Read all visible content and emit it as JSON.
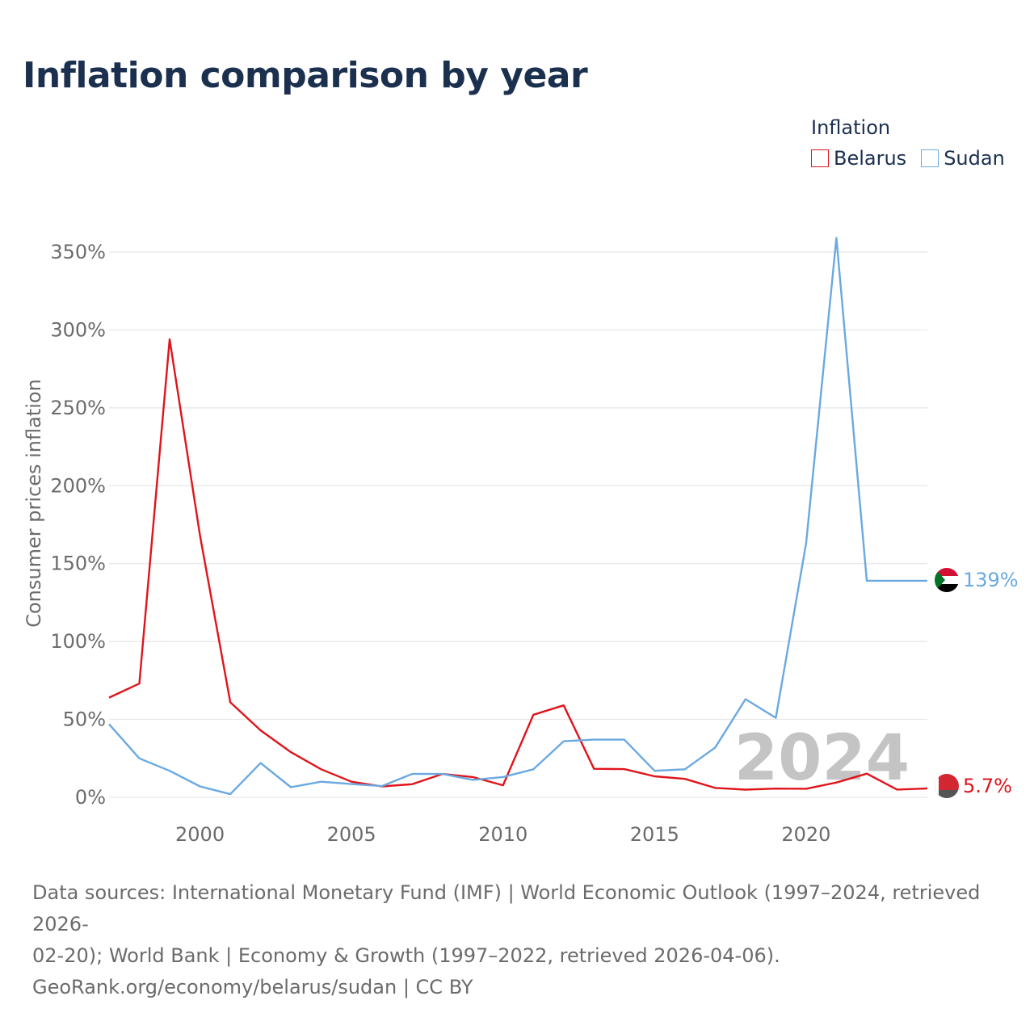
{
  "title": "Inflation comparison by year",
  "legend": {
    "title": "Inflation",
    "items": [
      {
        "label": "Belarus",
        "color": "#e0141b"
      },
      {
        "label": "Sudan",
        "color": "#6aa9e0"
      }
    ]
  },
  "chart_data": {
    "type": "line",
    "title": "Inflation comparison by year",
    "xlabel": "",
    "ylabel": "Consumer prices inflation",
    "xlim": [
      1997,
      2024
    ],
    "ylim": [
      0,
      350
    ],
    "x_ticks": [
      2000,
      2005,
      2010,
      2015,
      2020
    ],
    "y_ticks": [
      0,
      50,
      100,
      150,
      200,
      250,
      300,
      350
    ],
    "y_tick_labels": [
      "0%",
      "50%",
      "100%",
      "150%",
      "200%",
      "250%",
      "300%",
      "350%"
    ],
    "grid": true,
    "year_watermark": "2024",
    "x": [
      1997,
      1998,
      1999,
      2000,
      2001,
      2002,
      2003,
      2004,
      2005,
      2006,
      2007,
      2008,
      2009,
      2010,
      2011,
      2012,
      2013,
      2014,
      2015,
      2016,
      2017,
      2018,
      2019,
      2020,
      2021,
      2022,
      2023,
      2024
    ],
    "series": [
      {
        "name": "Belarus",
        "color": "#e0141b",
        "values": [
          64,
          73,
          294,
          168,
          61,
          43,
          29,
          18,
          10,
          7,
          8.4,
          15,
          13,
          7.7,
          53,
          59,
          18.3,
          18.1,
          13.5,
          11.8,
          6,
          4.9,
          5.6,
          5.5,
          9.5,
          15.2,
          5,
          5.7
        ],
        "end_label": "5.7%"
      },
      {
        "name": "Sudan",
        "color": "#6aa9e0",
        "values": [
          47,
          25,
          17,
          7,
          2,
          22,
          6.5,
          10,
          8.5,
          7.2,
          15,
          15,
          11.2,
          13,
          18,
          36,
          37,
          37,
          17,
          18,
          32,
          63,
          51,
          163,
          359,
          139,
          139,
          139
        ],
        "end_label": "139%"
      }
    ]
  },
  "source": {
    "line1": "Data sources: International Monetary Fund (IMF) | World Economic Outlook (1997–2024, retrieved 2026-",
    "line2": "02-20); World Bank | Economy & Growth (1997–2022, retrieved 2026-04-06).",
    "line3": "GeoRank.org/economy/belarus/sudan | CC BY"
  }
}
